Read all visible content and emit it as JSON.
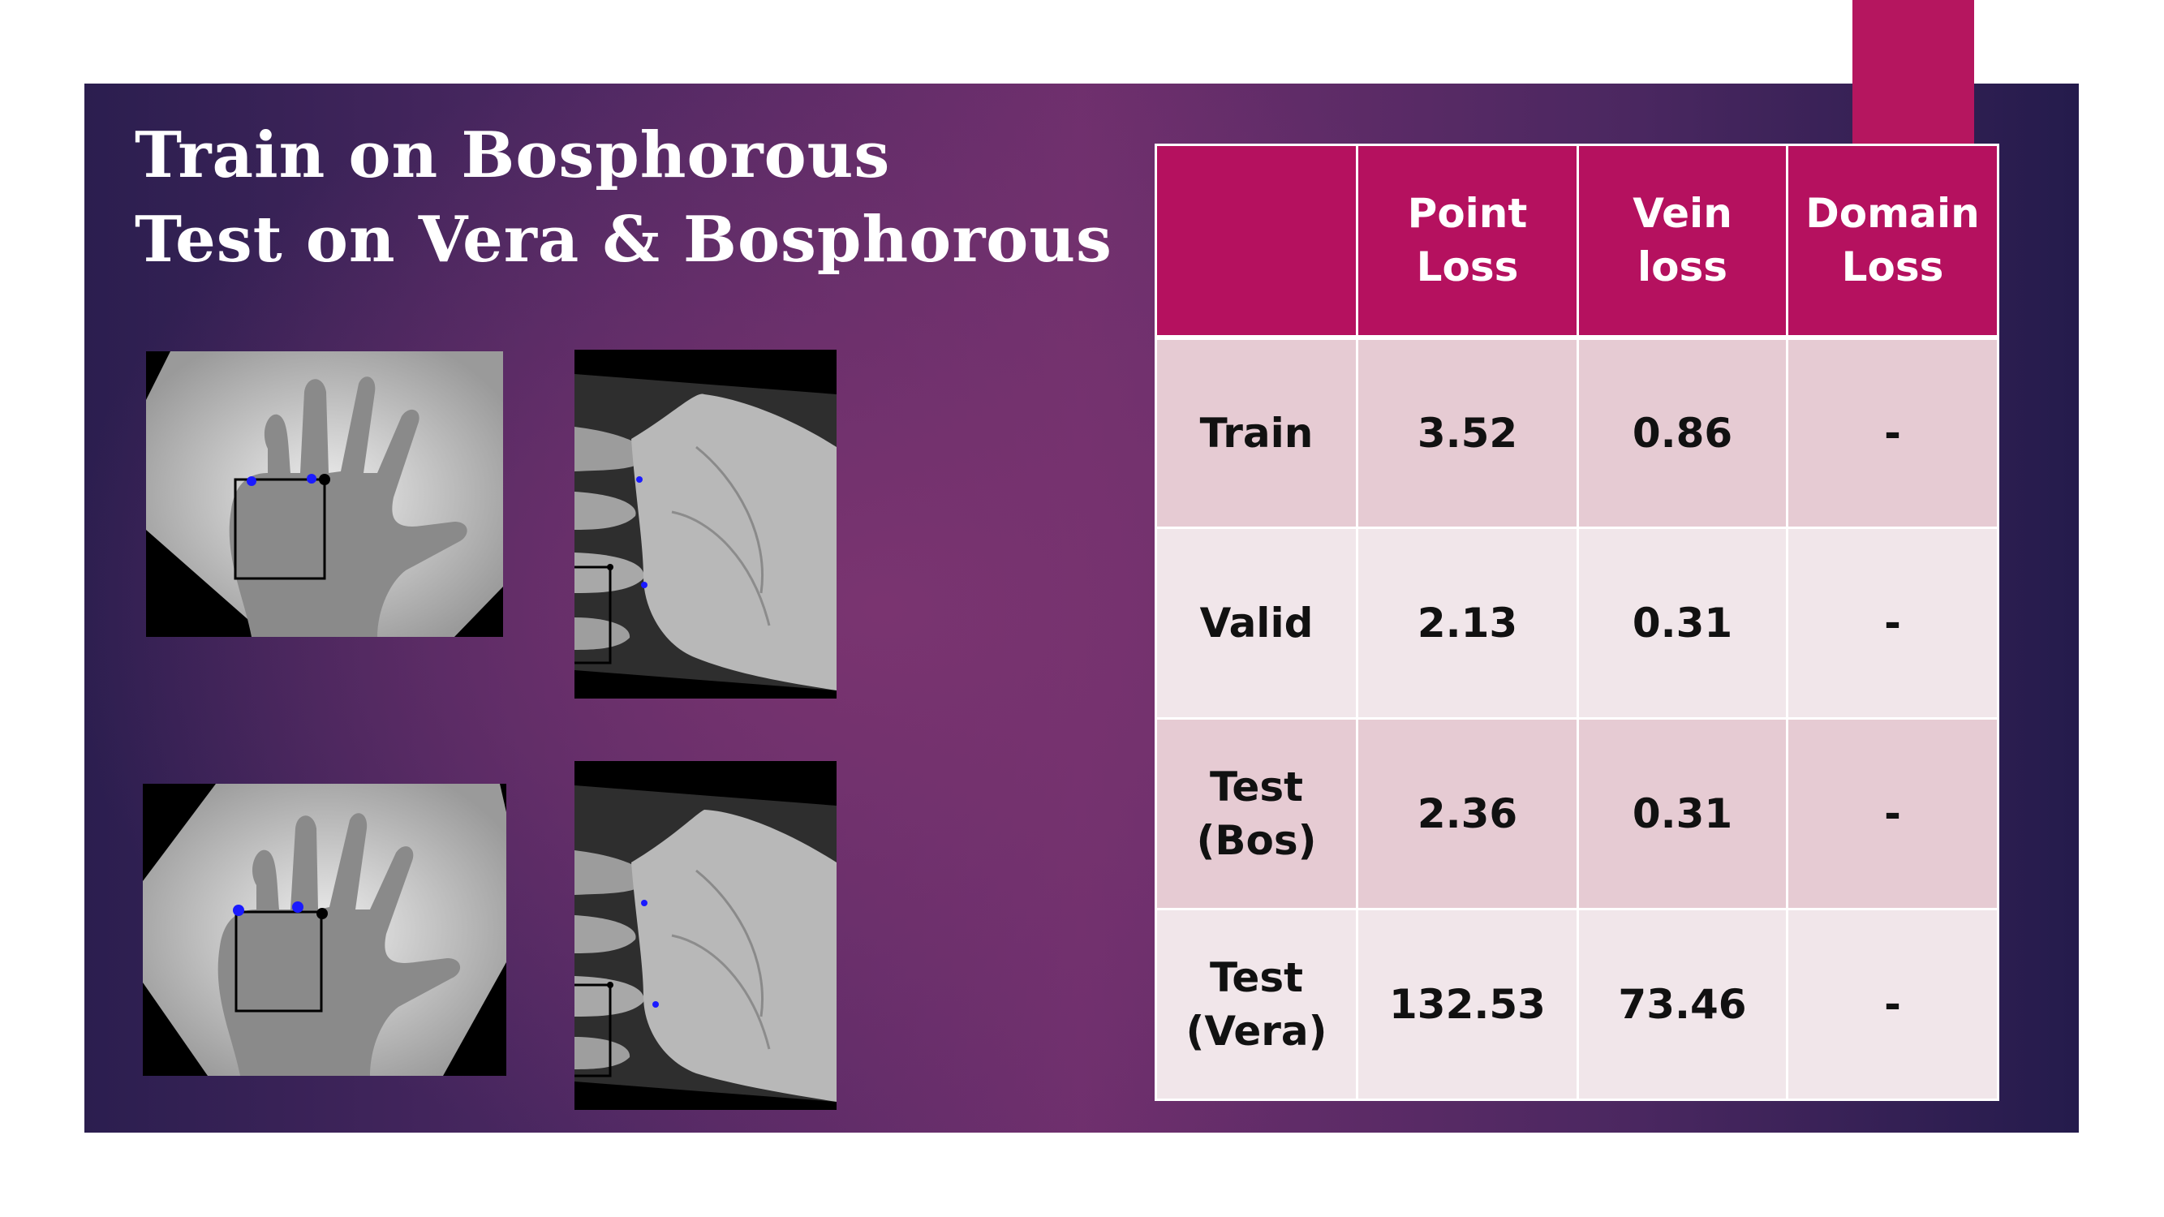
{
  "slide": {
    "title_line_1": "Train on Bosphorous",
    "title_line_2": "Test on Vera & Bosphorous"
  },
  "table": {
    "headers": [
      "",
      "Point\nLoss",
      "Vein\nloss",
      "Domain\nLoss"
    ],
    "rows": [
      {
        "label": "Train",
        "point_loss": "3.52",
        "vein_loss": "0.86",
        "domain_loss": "-"
      },
      {
        "label": "Valid",
        "point_loss": "2.13",
        "vein_loss": "0.31",
        "domain_loss": "-"
      },
      {
        "label": "Test\n(Bos)",
        "point_loss": "2.36",
        "vein_loss": "0.31",
        "domain_loss": "-"
      },
      {
        "label": "Test\n(Vera)",
        "point_loss": "132.53",
        "vein_loss": "73.46",
        "domain_loss": "-"
      }
    ]
  },
  "colors": {
    "accent": "#b5115f",
    "row_dark": "#e6cbd3",
    "row_light": "#f1e6ea",
    "keypoint": "#1a1aff"
  }
}
